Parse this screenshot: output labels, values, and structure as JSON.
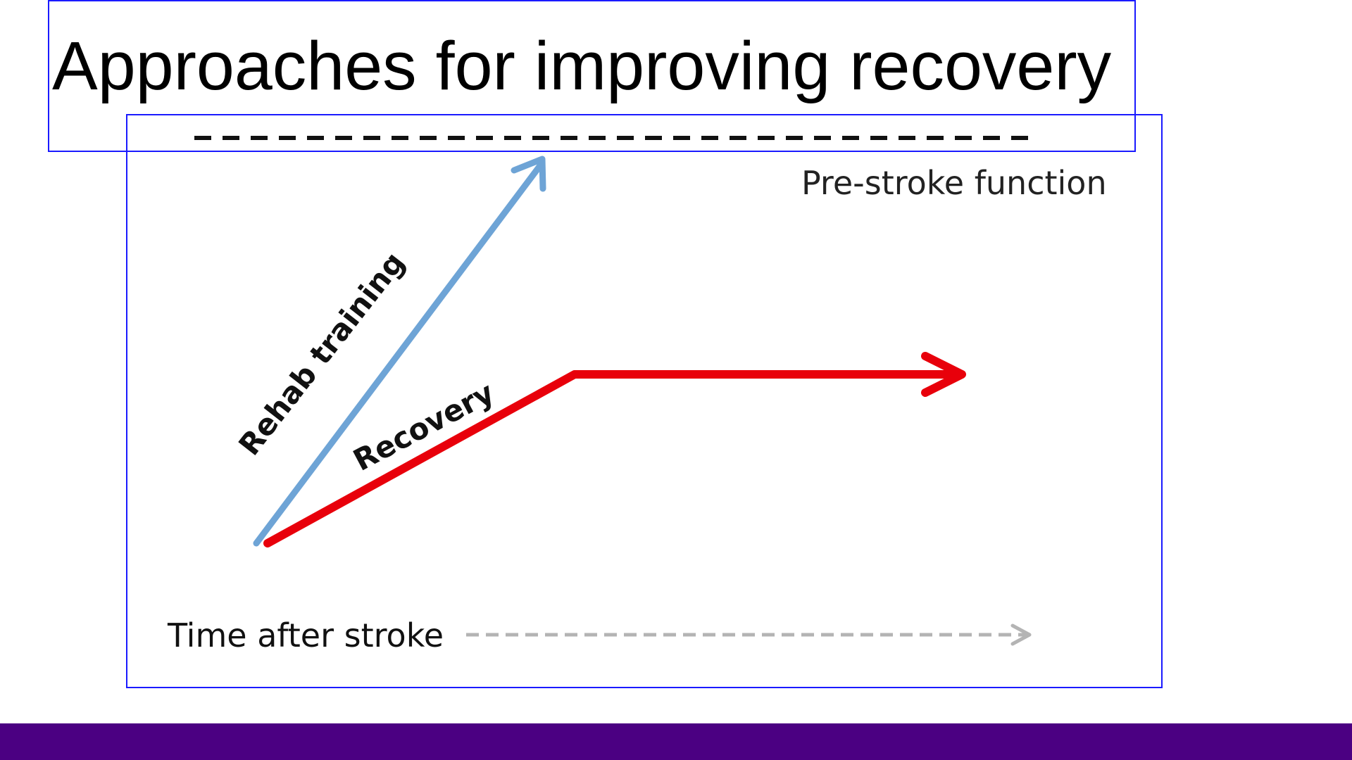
{
  "slide": {
    "title": "Approaches for improving recovery",
    "background": "#ffffff",
    "frame_color": "#1a1aff",
    "bar_color": "#4b0082"
  },
  "diagram": {
    "ceiling_label": "Pre-stroke function",
    "rehab_label": "Rehab training",
    "recovery_label": "Recovery",
    "time_label": "Time after stroke",
    "rehab_color": "#6ea4d6",
    "recovery_color": "#e8000b",
    "time_arrow_color": "#b4b4b4",
    "ceiling_line_color": "#111111"
  }
}
